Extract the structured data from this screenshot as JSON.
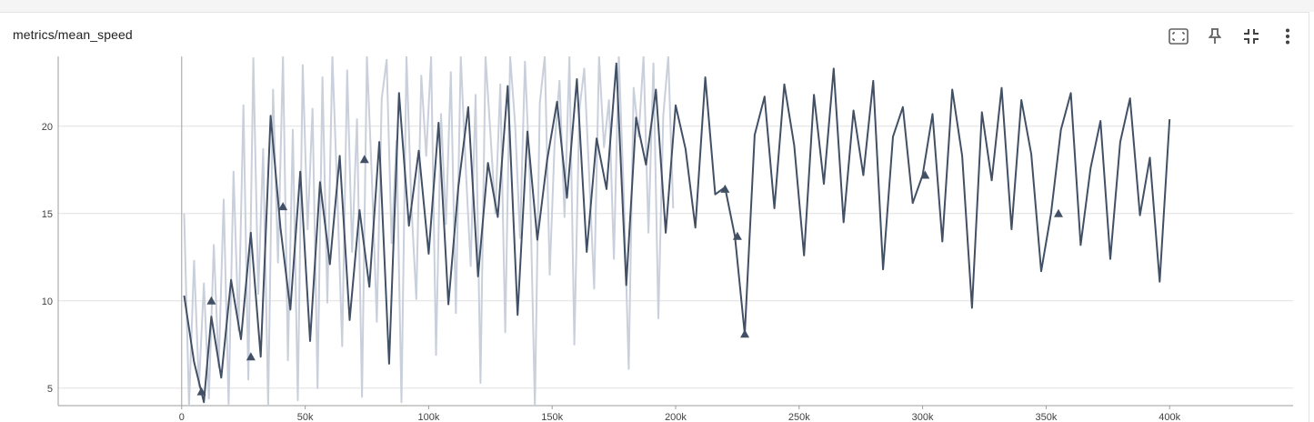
{
  "card": {
    "title": "metrics/mean_speed"
  },
  "toolbar": {
    "buttons": [
      {
        "name": "fit-domain-icon",
        "label": "Fit domain to data"
      },
      {
        "name": "pin-icon",
        "label": "Pin card"
      },
      {
        "name": "collapse-icon",
        "label": "Exit full size"
      },
      {
        "name": "more-vert-icon",
        "label": "More"
      }
    ]
  },
  "chart_data": {
    "type": "line",
    "title": "metrics/mean_speed",
    "xlabel": "",
    "ylabel": "",
    "xlim": [
      -50000,
      450000
    ],
    "ylim": [
      4,
      24
    ],
    "x_ticks": [
      "0",
      "50k",
      "100k",
      "150k",
      "200k",
      "250k",
      "300k",
      "350k",
      "400k"
    ],
    "x_tick_values": [
      0,
      50000,
      100000,
      150000,
      200000,
      250000,
      300000,
      350000,
      400000
    ],
    "y_ticks": [
      "5",
      "10",
      "15",
      "20"
    ],
    "y_tick_values": [
      5,
      10,
      15,
      20
    ],
    "grid": true,
    "colors": {
      "smoothed": "#425066",
      "raw": "#c9cfdb",
      "grid": "#e0e0e0",
      "axis": "#9e9e9e"
    },
    "series": [
      {
        "role": "smoothed",
        "x": [
          1000,
          5000,
          9000,
          12000,
          16000,
          20000,
          24000,
          28000,
          32000,
          36000,
          40000,
          44000,
          48000,
          52000,
          56000,
          60000,
          64000,
          68000,
          72000,
          76000,
          80000,
          84000,
          88000,
          92000,
          96000,
          100000,
          104000,
          108000,
          112000,
          116000,
          120000,
          124000,
          128000,
          132000,
          136000,
          140000,
          144000,
          148000,
          152000,
          156000,
          160000,
          164000,
          168000,
          172000,
          176000,
          180000,
          184000,
          188000,
          192000,
          196000,
          200000,
          204000,
          208000,
          212000,
          216000,
          220000,
          224000,
          228000,
          232000,
          236000,
          240000,
          244000,
          248000,
          252000,
          256000,
          260000,
          264000,
          268000,
          272000,
          276000,
          280000,
          284000,
          288000,
          292000,
          296000,
          300000,
          304000,
          308000,
          312000,
          316000,
          320000,
          324000,
          328000,
          332000,
          336000,
          340000,
          344000,
          348000,
          352000,
          356000,
          360000,
          364000,
          368000,
          372000,
          376000,
          380000,
          384000,
          388000,
          392000,
          396000,
          400000
        ],
        "y": [
          10.3,
          6.5,
          4.2,
          9.1,
          5.6,
          11.2,
          7.8,
          13.9,
          6.8,
          20.6,
          14.2,
          9.5,
          17.4,
          7.7,
          16.8,
          12.1,
          18.3,
          8.9,
          15.2,
          10.8,
          19.1,
          6.4,
          21.9,
          14.3,
          18.6,
          12.7,
          20.2,
          9.8,
          16.5,
          21.1,
          11.4,
          17.9,
          14.8,
          22.3,
          9.2,
          19.7,
          13.5,
          18.1,
          21.4,
          15.9,
          22.7,
          12.8,
          19.3,
          16.4,
          23.6,
          10.9,
          20.5,
          17.8,
          22.1,
          13.9,
          21.2,
          18.7,
          14.2,
          22.8,
          16.1,
          16.5,
          13.7,
          8.1,
          19.5,
          21.7,
          15.3,
          22.4,
          18.9,
          12.6,
          21.8,
          16.7,
          23.3,
          14.5,
          20.9,
          17.2,
          22.6,
          11.8,
          19.4,
          21.1,
          15.6,
          17.2,
          20.7,
          13.4,
          22.1,
          18.3,
          9.6,
          20.8,
          16.9,
          22.2,
          14.1,
          21.5,
          18.4,
          11.7,
          15.0,
          19.8,
          21.9,
          13.2,
          17.6,
          20.3,
          12.4,
          19.1,
          21.6,
          14.9,
          18.2,
          11.1,
          20.4
        ]
      },
      {
        "role": "raw",
        "x": [
          1000,
          3000,
          5000,
          7000,
          9000,
          11000,
          13000,
          15000,
          17000,
          19000,
          21000,
          23000,
          25000,
          27000,
          29000,
          31000,
          33000,
          35000,
          37000,
          39000,
          41000,
          43000,
          45000,
          47000,
          49000,
          51000,
          53000,
          55000,
          57000,
          59000,
          61000,
          63000,
          65000,
          67000,
          69000,
          71000,
          73000,
          75000,
          77000,
          79000,
          81000,
          83000,
          85000,
          87000,
          89000,
          91000,
          93000,
          95000,
          97000,
          99000,
          101000,
          103000,
          105000,
          107000,
          109000,
          111000,
          113000,
          115000,
          117000,
          119000,
          121000,
          123000,
          125000,
          127000,
          129000,
          131000,
          133000,
          135000,
          137000,
          139000,
          141000,
          143000,
          145000,
          147000,
          149000,
          151000,
          153000,
          155000,
          157000,
          159000,
          161000,
          163000,
          165000,
          167000,
          169000,
          171000,
          173000,
          175000,
          177000,
          179000,
          181000,
          183000,
          185000,
          187000,
          189000,
          191000,
          193000,
          195000,
          197000,
          199000
        ],
        "y": [
          15.0,
          4.0,
          12.3,
          5.1,
          11.0,
          4.4,
          13.2,
          6.2,
          15.8,
          4.1,
          17.4,
          8.3,
          21.2,
          5.5,
          23.9,
          10.4,
          18.7,
          4.0,
          22.1,
          12.2,
          24.0,
          6.6,
          19.8,
          4.3,
          23.5,
          14.1,
          21.0,
          5.0,
          22.8,
          9.9,
          24.0,
          16.2,
          7.4,
          23.2,
          12.8,
          20.4,
          4.5,
          24.0,
          17.1,
          8.8,
          21.6,
          23.8,
          13.3,
          19.2,
          4.2,
          24.0,
          15.5,
          10.1,
          22.9,
          18.3,
          24.0,
          6.9,
          20.7,
          14.4,
          23.1,
          9.3,
          24.0,
          17.7,
          12.0,
          21.8,
          5.3,
          24.0,
          19.6,
          15.0,
          22.4,
          8.2,
          24.0,
          20.1,
          13.6,
          23.7,
          16.9,
          4.0,
          21.3,
          24.0,
          11.5,
          19.0,
          22.6,
          14.8,
          24.0,
          7.5,
          20.9,
          23.3,
          17.2,
          10.7,
          24.0,
          18.8,
          21.5,
          12.4,
          24.0,
          16.0,
          6.1,
          22.2,
          19.4,
          24.0,
          13.9,
          23.6,
          9.0,
          20.6,
          24.0,
          15.3
        ]
      }
    ],
    "markers_smoothed": [
      {
        "x": 8000,
        "y": 4.8
      },
      {
        "x": 12000,
        "y": 10.0
      },
      {
        "x": 28000,
        "y": 6.8
      },
      {
        "x": 41000,
        "y": 15.4
      },
      {
        "x": 74000,
        "y": 18.1
      },
      {
        "x": 220000,
        "y": 16.4
      },
      {
        "x": 225000,
        "y": 13.7
      },
      {
        "x": 228000,
        "y": 8.1
      },
      {
        "x": 301000,
        "y": 17.2
      },
      {
        "x": 355000,
        "y": 15.0
      }
    ]
  }
}
